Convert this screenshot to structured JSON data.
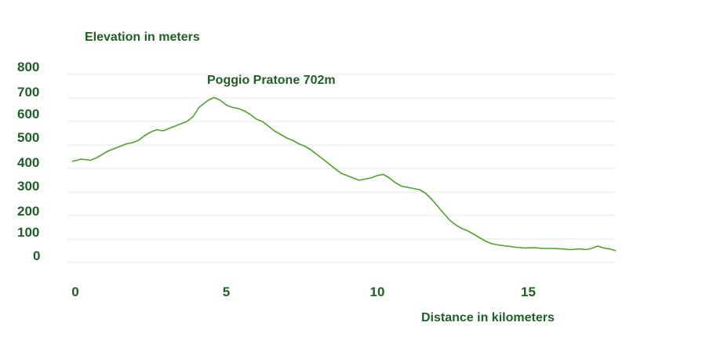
{
  "colors": {
    "text": "#1f5e24",
    "line": "#4da32b",
    "grid": "#e6e6e6"
  },
  "chart_data": {
    "type": "line",
    "ylabel": "Elevation in meters",
    "xlabel": "Distance in kilometers",
    "annotation": {
      "text": "Poggio Pratone 702m",
      "x": 4.3,
      "y": 702
    },
    "xlim": [
      0,
      18
    ],
    "ylim": [
      -50,
      800
    ],
    "grid": true,
    "yticks": [
      {
        "label": "800",
        "value": 800
      },
      {
        "label": "700",
        "value": 700
      },
      {
        "label": "600",
        "value": 600
      },
      {
        "label": "500",
        "value": 500
      },
      {
        "label": "400",
        "value": 400
      },
      {
        "label": "300",
        "value": 300
      },
      {
        "label": "200",
        "value": 200
      },
      {
        "label": "100",
        "value": 100
      },
      {
        "label": "0",
        "value": 0
      }
    ],
    "xticks": [
      {
        "label": "0",
        "value": 0
      },
      {
        "label": "5",
        "value": 5
      },
      {
        "label": "10",
        "value": 10
      },
      {
        "label": "15",
        "value": 15
      }
    ],
    "series": [
      {
        "values": [
          [
            0,
            430
          ],
          [
            0.3,
            440
          ],
          [
            0.6,
            435
          ],
          [
            0.8,
            445
          ],
          [
            1.0,
            460
          ],
          [
            1.2,
            475
          ],
          [
            1.5,
            490
          ],
          [
            1.8,
            505
          ],
          [
            2.0,
            510
          ],
          [
            2.2,
            520
          ],
          [
            2.4,
            540
          ],
          [
            2.6,
            555
          ],
          [
            2.8,
            565
          ],
          [
            3.0,
            560
          ],
          [
            3.2,
            570
          ],
          [
            3.4,
            580
          ],
          [
            3.6,
            590
          ],
          [
            3.8,
            600
          ],
          [
            4.0,
            620
          ],
          [
            4.2,
            660
          ],
          [
            4.5,
            690
          ],
          [
            4.7,
            702
          ],
          [
            4.9,
            690
          ],
          [
            5.1,
            670
          ],
          [
            5.3,
            660
          ],
          [
            5.5,
            655
          ],
          [
            5.7,
            645
          ],
          [
            5.9,
            630
          ],
          [
            6.1,
            610
          ],
          [
            6.3,
            600
          ],
          [
            6.5,
            580
          ],
          [
            6.7,
            560
          ],
          [
            6.9,
            545
          ],
          [
            7.1,
            530
          ],
          [
            7.3,
            520
          ],
          [
            7.5,
            505
          ],
          [
            7.7,
            495
          ],
          [
            7.9,
            480
          ],
          [
            8.1,
            460
          ],
          [
            8.3,
            440
          ],
          [
            8.5,
            420
          ],
          [
            8.7,
            400
          ],
          [
            8.9,
            380
          ],
          [
            9.1,
            370
          ],
          [
            9.3,
            360
          ],
          [
            9.5,
            350
          ],
          [
            9.7,
            355
          ],
          [
            9.9,
            360
          ],
          [
            10.1,
            370
          ],
          [
            10.3,
            375
          ],
          [
            10.5,
            360
          ],
          [
            10.7,
            340
          ],
          [
            10.9,
            325
          ],
          [
            11.1,
            320
          ],
          [
            11.3,
            315
          ],
          [
            11.5,
            310
          ],
          [
            11.7,
            295
          ],
          [
            11.9,
            270
          ],
          [
            12.1,
            240
          ],
          [
            12.3,
            210
          ],
          [
            12.5,
            180
          ],
          [
            12.7,
            160
          ],
          [
            12.9,
            145
          ],
          [
            13.1,
            135
          ],
          [
            13.3,
            120
          ],
          [
            13.5,
            105
          ],
          [
            13.7,
            90
          ],
          [
            13.9,
            80
          ],
          [
            14.1,
            75
          ],
          [
            14.4,
            70
          ],
          [
            14.7,
            65
          ],
          [
            15.0,
            62
          ],
          [
            15.3,
            63
          ],
          [
            15.6,
            60
          ],
          [
            15.9,
            60
          ],
          [
            16.2,
            58
          ],
          [
            16.5,
            55
          ],
          [
            16.8,
            58
          ],
          [
            17.0,
            55
          ],
          [
            17.2,
            60
          ],
          [
            17.4,
            70
          ],
          [
            17.6,
            62
          ],
          [
            17.8,
            58
          ],
          [
            18.0,
            50
          ]
        ]
      }
    ]
  }
}
